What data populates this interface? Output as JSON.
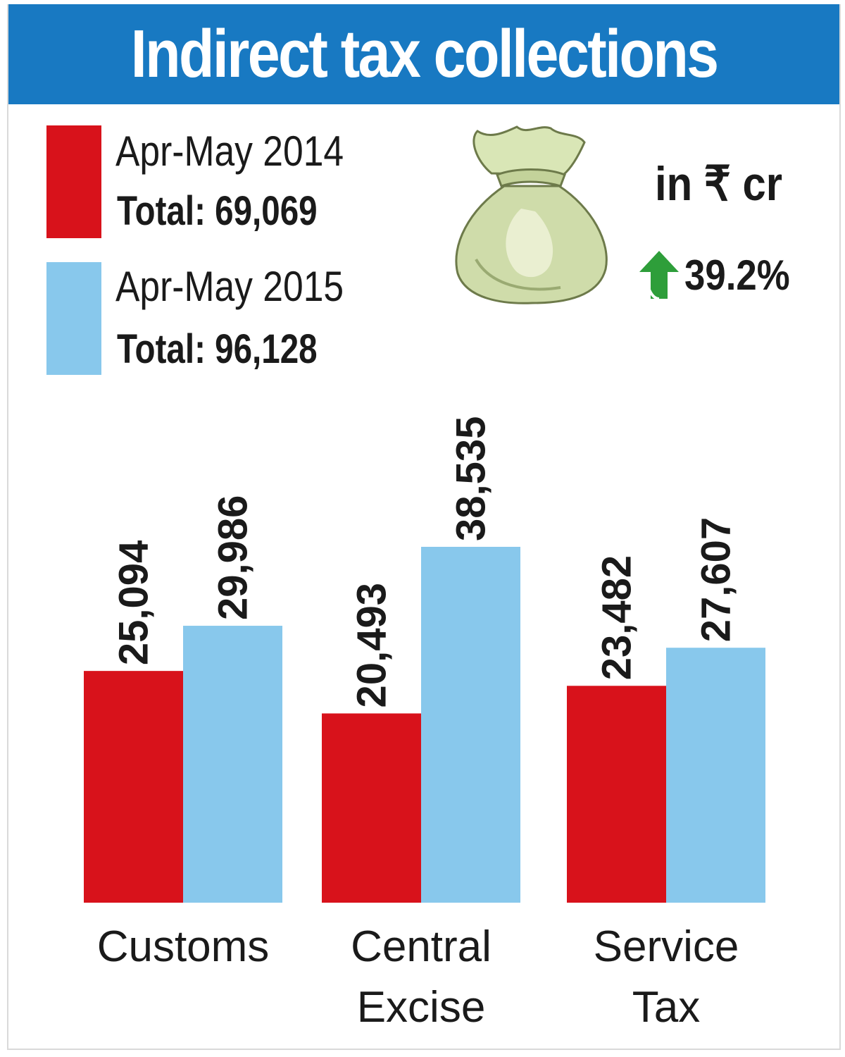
{
  "title": "Indirect tax collections",
  "unit": "in ₹ cr",
  "growth": {
    "value": "39.2%",
    "icon": "up-arrow-icon",
    "color": "#2e9e3a"
  },
  "legend": [
    {
      "label": "Apr-May 2014",
      "total": "Total: 69,069",
      "color": "#d8121b"
    },
    {
      "label": "Apr-May 2015",
      "total": "Total: 96,128",
      "color": "#88c8ec"
    }
  ],
  "colors": {
    "title_bg": "#1879c2",
    "title_text": "#ffffff"
  },
  "chart_data": {
    "type": "bar",
    "categories": [
      [
        "Customs"
      ],
      [
        "Central",
        "Excise"
      ],
      [
        "Service",
        "Tax"
      ]
    ],
    "series": [
      {
        "name": "Apr-May 2014",
        "values": [
          25094,
          20493,
          23482
        ],
        "labels": [
          "25,094",
          "20,493",
          "23,482"
        ],
        "color": "#d8121b"
      },
      {
        "name": "Apr-May 2015",
        "values": [
          29986,
          38535,
          27607
        ],
        "labels": [
          "29,986",
          "38,535",
          "27,607"
        ],
        "color": "#88c8ec"
      }
    ],
    "title": "Indirect tax collections",
    "ylabel": "in ₹ cr",
    "ylim": [
      0,
      38535
    ],
    "grid": false,
    "legend_position": "top-left"
  }
}
